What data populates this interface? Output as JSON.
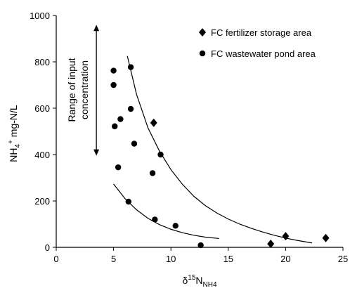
{
  "chart_data": {
    "type": "scatter",
    "xlabel_base": "δ",
    "xlabel_sup": "15",
    "xlabel_main": "N",
    "xlabel_sub": "NH4",
    "ylabel_pre": "NH",
    "ylabel_sub": "4",
    "ylabel_sup": "+",
    "ylabel_post": " mg-N/L",
    "xlim": [
      0,
      25
    ],
    "ylim": [
      0,
      1000
    ],
    "xticks": [
      0,
      5,
      10,
      15,
      20,
      25
    ],
    "yticks": [
      0,
      200,
      400,
      600,
      800,
      1000
    ],
    "grid": false,
    "legend_position": "top-right",
    "annotation": {
      "line1": "Range of input",
      "line2": "concentration",
      "arrow_y_range": [
        395,
        960
      ],
      "arrow_x": 3.5
    },
    "series": [
      {
        "name": "FC fertilizer storage area",
        "marker": "diamond",
        "points": [
          {
            "x": 8.5,
            "y": 537
          },
          {
            "x": 18.7,
            "y": 15
          },
          {
            "x": 20.0,
            "y": 48
          },
          {
            "x": 23.5,
            "y": 40
          }
        ]
      },
      {
        "name": "FC wastewater pond area",
        "marker": "circle",
        "points": [
          {
            "x": 5.0,
            "y": 762
          },
          {
            "x": 5.0,
            "y": 700
          },
          {
            "x": 5.1,
            "y": 522
          },
          {
            "x": 5.6,
            "y": 553
          },
          {
            "x": 5.4,
            "y": 345
          },
          {
            "x": 6.5,
            "y": 777
          },
          {
            "x": 6.5,
            "y": 597
          },
          {
            "x": 6.8,
            "y": 447
          },
          {
            "x": 9.1,
            "y": 400
          },
          {
            "x": 8.4,
            "y": 320
          },
          {
            "x": 6.3,
            "y": 197
          },
          {
            "x": 8.6,
            "y": 120
          },
          {
            "x": 10.4,
            "y": 93
          },
          {
            "x": 12.6,
            "y": 9
          }
        ]
      }
    ],
    "curves": [
      {
        "name": "upper trend",
        "points": [
          [
            6.2,
            825
          ],
          [
            7,
            660
          ],
          [
            8,
            515
          ],
          [
            9,
            415
          ],
          [
            10,
            335
          ],
          [
            11,
            272
          ],
          [
            12,
            220
          ],
          [
            13,
            180
          ],
          [
            14,
            148
          ],
          [
            15,
            122
          ],
          [
            16,
            100
          ],
          [
            17,
            82
          ],
          [
            18,
            66
          ],
          [
            19,
            52
          ],
          [
            20,
            40
          ],
          [
            21,
            30
          ],
          [
            22.3,
            19
          ]
        ]
      },
      {
        "name": "lower trend",
        "points": [
          [
            5.0,
            273
          ],
          [
            6,
            210
          ],
          [
            7,
            162
          ],
          [
            8,
            125
          ],
          [
            9,
            98
          ],
          [
            10,
            78
          ],
          [
            11,
            63
          ],
          [
            12,
            52
          ],
          [
            13,
            44
          ],
          [
            14.2,
            38
          ]
        ]
      }
    ]
  }
}
